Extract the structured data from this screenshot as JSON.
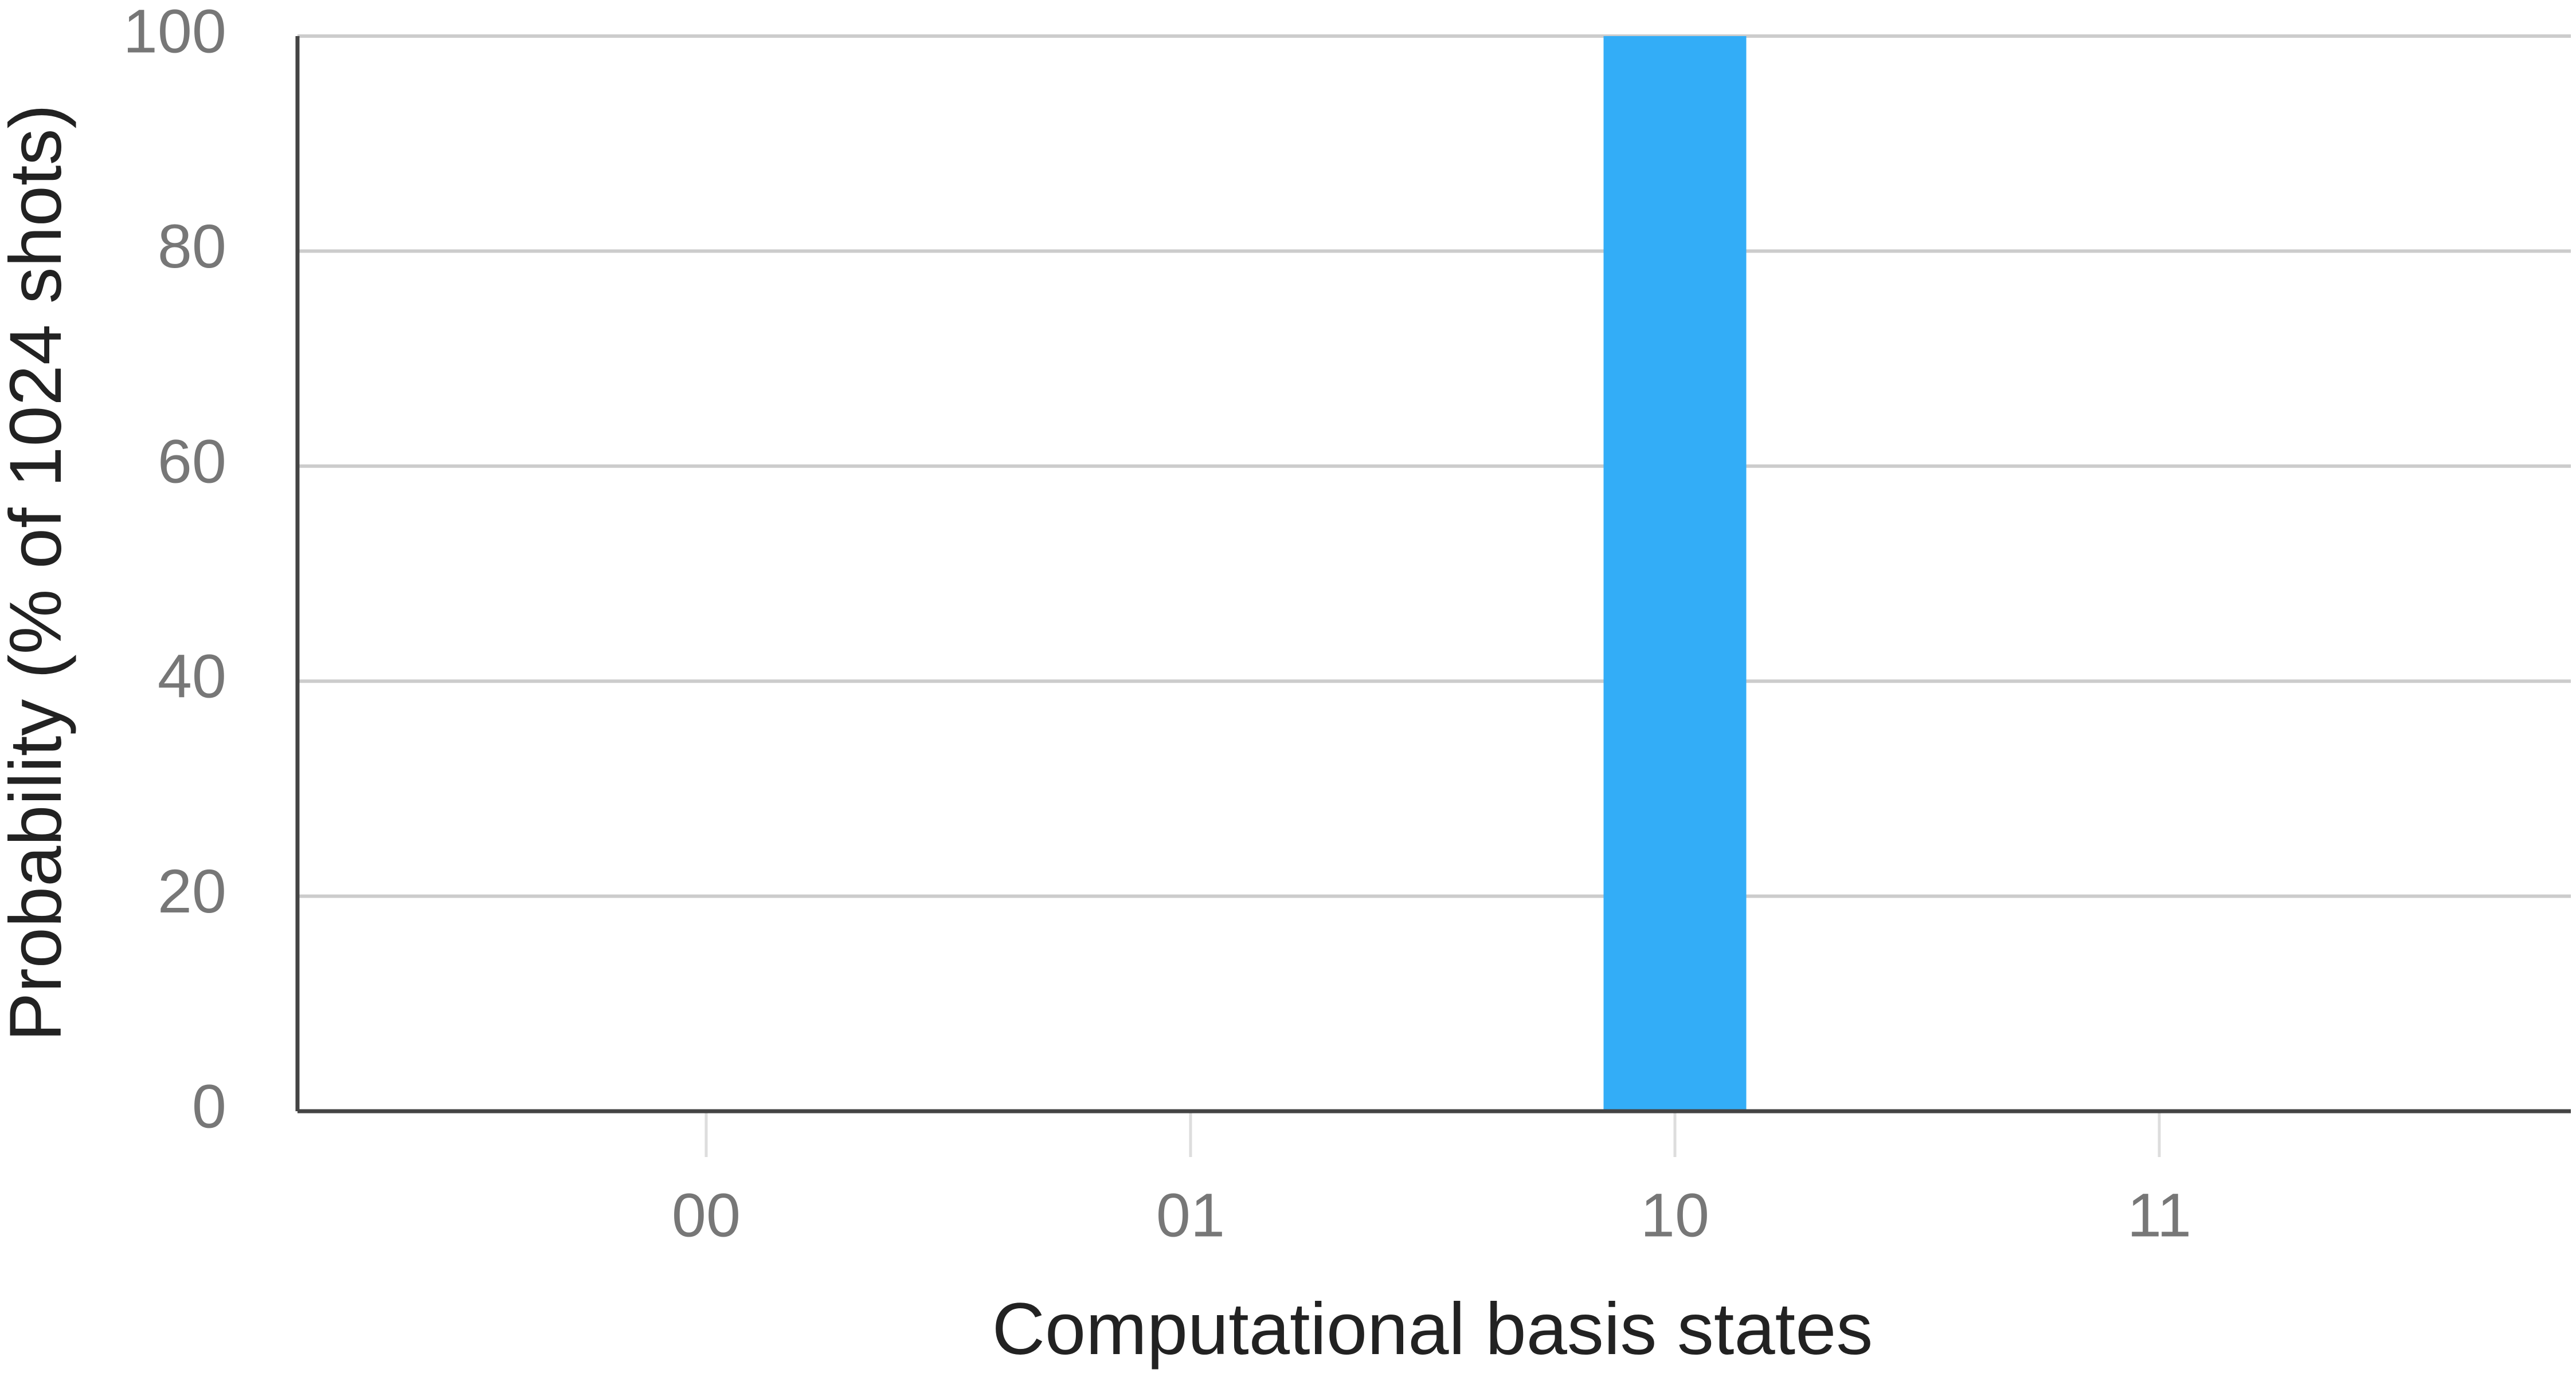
{
  "chart_data": {
    "type": "bar",
    "x_label": "Computational basis states",
    "y_label": "Probability (% of 1024 shots)",
    "categories": [
      "00",
      "01",
      "10",
      "11"
    ],
    "values": [
      0,
      0,
      100,
      0
    ],
    "color": "#33adf7",
    "ylim": [
      0,
      100
    ],
    "yticks": [
      0,
      20,
      40,
      60,
      80,
      100
    ],
    "grid": true
  }
}
